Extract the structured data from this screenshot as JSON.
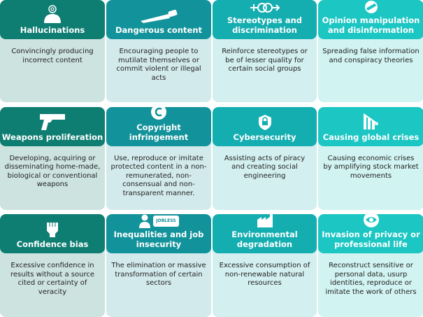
{
  "colors": {
    "col1_header": "#0e7d72",
    "col2_header": "#12929a",
    "col3_header": "#14adb0",
    "col4_header": "#1bc6c3"
  },
  "cards": [
    {
      "title": "Hallucinations",
      "icon": "head-spiral-icon",
      "text": "Convincingly producing incorrect content"
    },
    {
      "title": "Dangerous content",
      "icon": "saw-icon",
      "text": "Encouraging people to mutilate themselves or commit violent or illegal acts"
    },
    {
      "title": "Stereotypes and discrimination",
      "icon": "gender-symbols-icon",
      "text": "Reinforce stereotypes or be of lesser quality for certain social groups"
    },
    {
      "title": "Opinion manipulation and disinformation",
      "icon": "fake-stamp-icon",
      "text": "Spreading false information and conspiracy theories"
    },
    {
      "title": "Weapons proliferation",
      "icon": "gun-icon",
      "text": "Developing, acquiring or disseminating home-made, biological or conventional weapons"
    },
    {
      "title": "Copyright infringement",
      "icon": "copyright-icon",
      "text": "Use, reproduce or imitate protected content in a non-remunerated, non-consensual and non-transparent manner."
    },
    {
      "title": "Cybersecurity",
      "icon": "shield-lock-icon",
      "text": "Assisting acts of piracy and creating social engineering"
    },
    {
      "title": "Causing global crises",
      "icon": "falling-chart-icon",
      "text": "Causing economic crises by amplifying stock market movements"
    },
    {
      "title": "Confidence bias",
      "icon": "fist-icon",
      "text": "Excessive confidence in results without a source cited or certainty of veracity"
    },
    {
      "title": "Inequalities and job insecurity",
      "icon": "person-icon",
      "badge": "JOBLESS",
      "text": "The elimination or massive transformation of certain sectors"
    },
    {
      "title": "Environmental degradation",
      "icon": "factory-icon",
      "text": "Excessive consumption of non-renewable natural resources"
    },
    {
      "title": "Invasion of privacy or professional life",
      "icon": "eye-icon",
      "text": "Reconstruct sensitive or personal data, usurp identities, reproduce or imitate the work of others"
    }
  ]
}
